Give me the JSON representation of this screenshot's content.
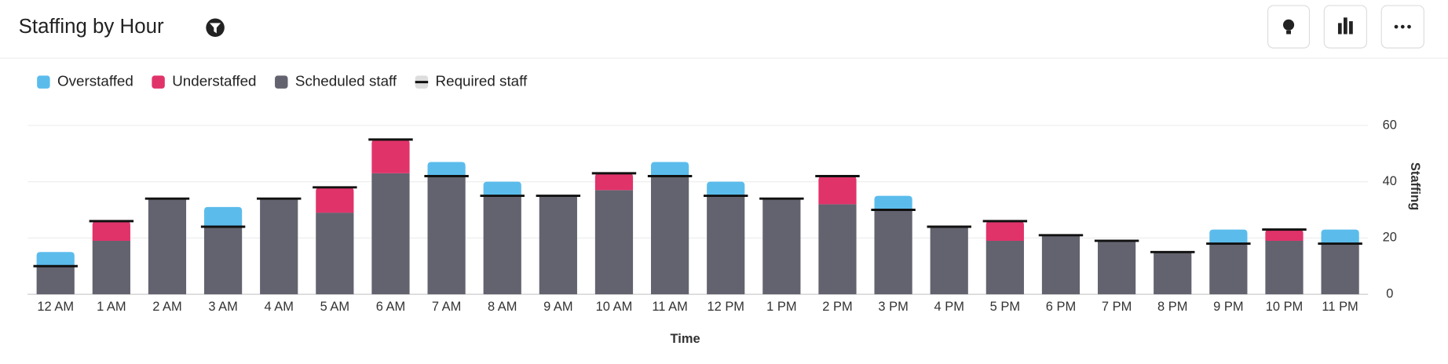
{
  "chart_data": {
    "type": "bar",
    "title": "Staffing by Hour",
    "x_label": "Time",
    "y_label": "Staffing",
    "categories": [
      "12 AM",
      "1 AM",
      "2 AM",
      "3 AM",
      "4 AM",
      "5 AM",
      "6 AM",
      "7 AM",
      "8 AM",
      "9 AM",
      "10 AM",
      "11 AM",
      "12 PM",
      "1 PM",
      "2 PM",
      "3 PM",
      "4 PM",
      "5 PM",
      "6 PM",
      "7 PM",
      "8 PM",
      "9 PM",
      "10 PM",
      "11 PM"
    ],
    "series": [
      {
        "name": "Overstaffed",
        "color": "#5bbcec",
        "stack": "over",
        "values": [
          5,
          0,
          0,
          7,
          0,
          0,
          0,
          5,
          5,
          0,
          0,
          5,
          5,
          0,
          0,
          5,
          0,
          0,
          0,
          0,
          0,
          5,
          0,
          5
        ]
      },
      {
        "name": "Understaffed",
        "color": "#e0336a",
        "stack": "under",
        "values": [
          0,
          7,
          0,
          0,
          0,
          9,
          12,
          0,
          0,
          0,
          6,
          0,
          0,
          0,
          10,
          0,
          0,
          7,
          0,
          0,
          0,
          0,
          4,
          0
        ]
      },
      {
        "name": "Scheduled staff",
        "color": "#63636f",
        "stack": "base",
        "values": [
          10,
          19,
          34,
          24,
          34,
          29,
          43,
          42,
          35,
          35,
          37,
          42,
          35,
          34,
          32,
          30,
          24,
          19,
          21,
          19,
          15,
          18,
          19,
          18
        ]
      },
      {
        "name": "Required staff",
        "color": "#111111",
        "mark": "line",
        "values": [
          10,
          26,
          34,
          24,
          34,
          38,
          55,
          42,
          35,
          35,
          43,
          42,
          35,
          34,
          42,
          30,
          24,
          26,
          21,
          19,
          15,
          18,
          23,
          18
        ]
      }
    ],
    "ylim": [
      0,
      60
    ],
    "yticks": [
      0,
      20,
      40,
      60
    ],
    "y_axis_side": "right",
    "grid": true
  }
}
